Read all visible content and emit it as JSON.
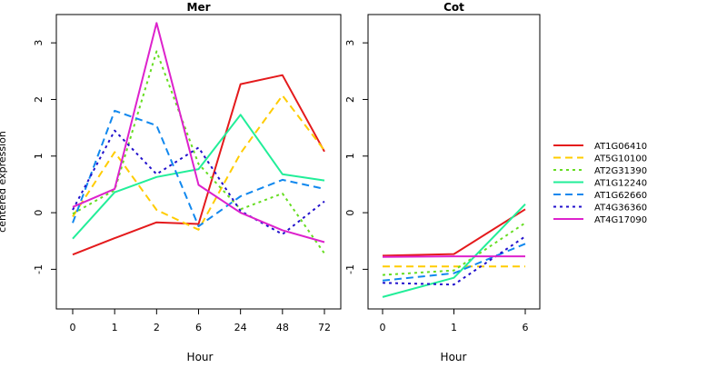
{
  "ylabel": "centered expression",
  "xlabel": "Hour",
  "chart_data": [
    {
      "type": "line",
      "title": "Mer",
      "xlabel": "Hour",
      "ylabel": "centered expression",
      "categories": [
        "0",
        "1",
        "2",
        "6",
        "24",
        "48",
        "72"
      ],
      "ylim": [
        -1.7,
        3.5
      ],
      "yticks": [
        -1,
        0,
        1,
        2,
        3
      ],
      "series": [
        {
          "name": "AT1G06410",
          "values": [
            -0.74,
            -0.45,
            -0.17,
            -0.2,
            2.27,
            2.43,
            1.08
          ]
        },
        {
          "name": "AT5G10100",
          "values": [
            -0.07,
            1.07,
            0.05,
            -0.3,
            1.05,
            2.07,
            1.1
          ]
        },
        {
          "name": "AT2G31390",
          "values": [
            -0.02,
            0.4,
            2.85,
            0.86,
            0.06,
            0.34,
            -0.72
          ]
        },
        {
          "name": "AT1G12240",
          "values": [
            -0.46,
            0.36,
            0.63,
            0.77,
            1.73,
            0.68,
            0.57
          ]
        },
        {
          "name": "AT1G62660",
          "values": [
            -0.18,
            1.8,
            1.54,
            -0.24,
            0.29,
            0.58,
            0.42
          ]
        },
        {
          "name": "AT4G36360",
          "values": [
            0.05,
            1.45,
            0.68,
            1.15,
            0.03,
            -0.38,
            0.2
          ]
        },
        {
          "name": "AT4G17090",
          "values": [
            0.1,
            0.42,
            3.35,
            0.49,
            0.0,
            -0.31,
            -0.52
          ]
        }
      ]
    },
    {
      "type": "line",
      "title": "Cot",
      "xlabel": "Hour",
      "categories": [
        "0",
        "1",
        "6"
      ],
      "ylim": [
        -1.7,
        3.5
      ],
      "yticks": [
        -1,
        0,
        1,
        2,
        3
      ],
      "series": [
        {
          "name": "AT1G06410",
          "values": [
            -0.76,
            -0.73,
            0.06
          ]
        },
        {
          "name": "AT5G10100",
          "values": [
            -0.95,
            -0.95,
            -0.95
          ]
        },
        {
          "name": "AT2G31390",
          "values": [
            -1.1,
            -1.02,
            -0.18
          ]
        },
        {
          "name": "AT1G12240",
          "values": [
            -1.49,
            -1.15,
            0.15
          ]
        },
        {
          "name": "AT1G62660",
          "values": [
            -1.2,
            -1.07,
            -0.55
          ]
        },
        {
          "name": "AT4G36360",
          "values": [
            -1.24,
            -1.27,
            -0.42
          ]
        },
        {
          "name": "AT4G17090",
          "values": [
            -0.78,
            -0.77,
            -0.77
          ]
        }
      ]
    }
  ],
  "styles": [
    {
      "color": "#e41a1c",
      "dash": "solid"
    },
    {
      "color": "#ffcc00",
      "dash": "dashed"
    },
    {
      "color": "#66dd22",
      "dash": "dotted"
    },
    {
      "color": "#22ee99",
      "dash": "solid"
    },
    {
      "color": "#1188ee",
      "dash": "dashed"
    },
    {
      "color": "#2211cc",
      "dash": "dotted"
    },
    {
      "color": "#dd22cc",
      "dash": "solid"
    }
  ]
}
